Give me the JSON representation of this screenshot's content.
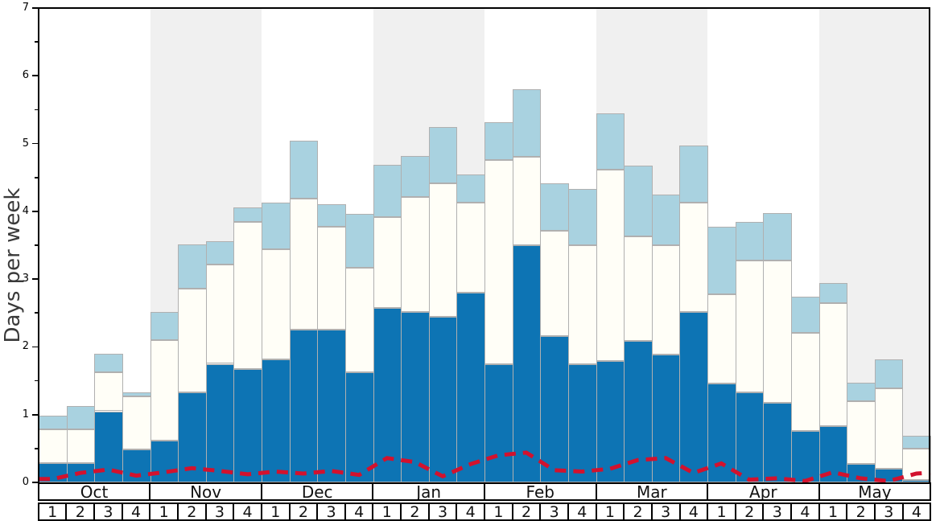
{
  "chart_data": {
    "type": "bar",
    "title": "",
    "ylabel": "Days per week",
    "ylim": [
      0,
      7
    ],
    "yticks": [
      0,
      1,
      2,
      3,
      4,
      5,
      6,
      7
    ],
    "minor_tick_step": 0.5,
    "grid": false,
    "legend_position": "none",
    "months": [
      "Oct",
      "Nov",
      "Dec",
      "Jan",
      "Feb",
      "Mar",
      "Apr",
      "May"
    ],
    "week_labels": [
      "1",
      "2",
      "3",
      "4"
    ],
    "stacking_note": "values are cumulative stack tops in days-per-week; dark blue bottom segment, white middle segment, light blue top segment; 4 weeks per month",
    "series": [
      {
        "name": "dark_blue_stack_top",
        "values": [
          0.29,
          0.29,
          1.05,
          0.49,
          0.62,
          1.33,
          1.75,
          1.67,
          1.81,
          2.25,
          2.25,
          1.63,
          2.58,
          2.52,
          2.44,
          2.8,
          1.74,
          3.5,
          2.16,
          1.74,
          1.79,
          2.09,
          1.89,
          2.51,
          1.46,
          1.33,
          1.18,
          0.76,
          0.83,
          0.27,
          0.2,
          0.04
        ]
      },
      {
        "name": "white_stack_top",
        "values": [
          0.78,
          0.78,
          1.62,
          1.27,
          2.1,
          2.86,
          3.21,
          3.84,
          3.44,
          4.19,
          3.77,
          3.17,
          3.91,
          4.21,
          4.41,
          4.13,
          4.76,
          4.81,
          3.71,
          3.5,
          4.61,
          3.63,
          3.5,
          4.13,
          2.78,
          3.28,
          3.28,
          2.21,
          2.65,
          1.2,
          1.39,
          0.5
        ]
      },
      {
        "name": "light_blue_stack_top",
        "values": [
          0.99,
          1.13,
          1.9,
          1.33,
          2.52,
          3.51,
          3.56,
          4.06,
          4.13,
          5.04,
          4.11,
          3.96,
          4.69,
          4.82,
          5.25,
          4.55,
          5.31,
          5.8,
          4.41,
          4.33,
          5.45,
          4.68,
          4.25,
          4.97,
          3.77,
          3.85,
          3.98,
          2.74,
          2.94,
          1.47,
          1.82,
          0.69
        ]
      },
      {
        "name": "red_dashed_line",
        "values": [
          0.05,
          0.14,
          0.19,
          0.1,
          0.15,
          0.21,
          0.17,
          0.12,
          0.16,
          0.13,
          0.17,
          0.11,
          0.36,
          0.3,
          0.09,
          0.27,
          0.4,
          0.44,
          0.18,
          0.16,
          0.2,
          0.33,
          0.36,
          0.14,
          0.28,
          0.04,
          0.06,
          0.02,
          0.15,
          0.06,
          0.02,
          0.13
        ]
      }
    ],
    "colors": {
      "dark_blue": "#0d74b4",
      "light_blue": "#a9d2e0",
      "bar_white": "#fffef7",
      "band_gray": "#f0f0f0",
      "band_white": "#ffffff",
      "red_line": "#d2122e",
      "bar_border": "#b0b0b0",
      "axis_black": "#000000",
      "label_gray": "#3a3a3a"
    }
  }
}
